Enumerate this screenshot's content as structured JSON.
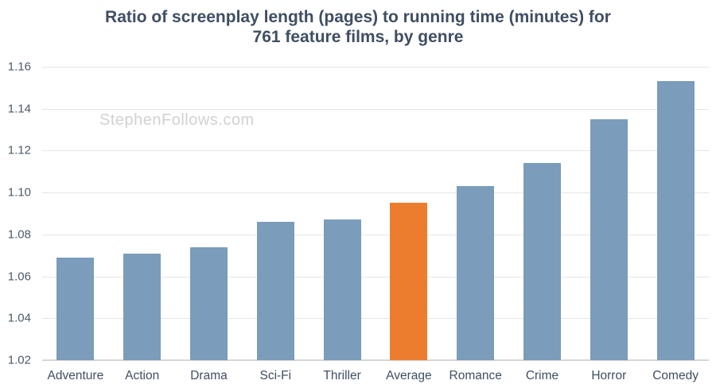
{
  "watermark": "StephenFollows.com",
  "chart_data": {
    "type": "bar",
    "title": "Ratio of screenplay length (pages) to running time (minutes) for 761 feature films, by genre",
    "title_lines": [
      "Ratio of screenplay length (pages) to running time (minutes) for",
      "761 feature films, by genre"
    ],
    "categories": [
      "Adventure",
      "Action",
      "Drama",
      "Sci-Fi",
      "Thriller",
      "Average",
      "Romance",
      "Crime",
      "Horror",
      "Comedy"
    ],
    "values": [
      1.069,
      1.071,
      1.074,
      1.086,
      1.087,
      1.095,
      1.103,
      1.114,
      1.135,
      1.153
    ],
    "highlight_category": "Average",
    "xlabel": "",
    "ylabel": "",
    "ylim": [
      1.02,
      1.16
    ],
    "ytick_step": 0.02,
    "yticks": [
      "1.02",
      "1.04",
      "1.06",
      "1.08",
      "1.10",
      "1.12",
      "1.14",
      "1.16"
    ],
    "grid": true,
    "legend": "none",
    "colors": {
      "bar": "#7b9cba",
      "highlight": "#ec7d2f",
      "title": "#3f4e63",
      "tick_label": "#4b5b6d",
      "category_label": "#3f4f63",
      "gridline": "#e6e6e6",
      "baseline": "#d7d7d7",
      "watermark": "#d2d2d2"
    }
  }
}
